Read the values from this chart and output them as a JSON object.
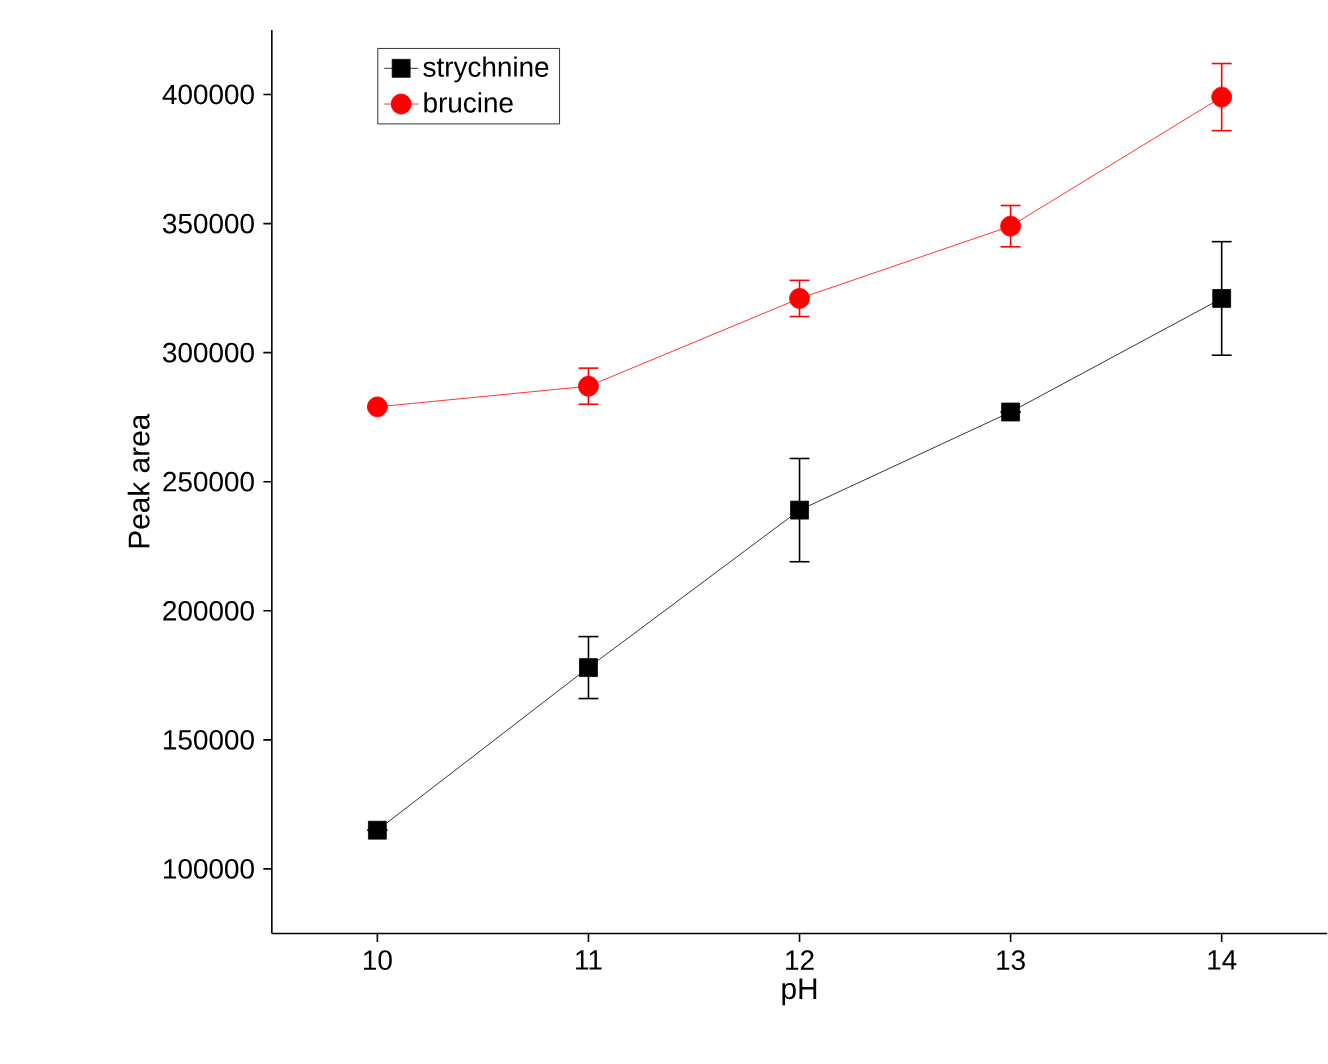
{
  "chart_data": {
    "type": "line",
    "xlabel": "pH",
    "ylabel": "Peak area",
    "x": [
      10,
      11,
      12,
      13,
      14
    ],
    "series": [
      {
        "name": "strychnine",
        "color": "#000000",
        "marker": "square",
        "values": [
          115000,
          178000,
          239000,
          277000,
          321000
        ],
        "errors": [
          null,
          12000,
          20000,
          null,
          22000
        ]
      },
      {
        "name": "brucine",
        "color": "#ff0000",
        "marker": "circle",
        "values": [
          279000,
          287000,
          321000,
          349000,
          399000
        ],
        "errors": [
          null,
          7000,
          7000,
          8000,
          13000
        ]
      }
    ],
    "xlim": [
      9.5,
      14.5
    ],
    "ylim": [
      75000,
      425000
    ],
    "xticks": [
      10,
      11,
      12,
      13,
      14
    ],
    "yticks": [
      100000,
      150000,
      200000,
      250000,
      300000,
      350000,
      400000
    ],
    "grid": false,
    "legend": "top left",
    "line_style": "solid"
  }
}
